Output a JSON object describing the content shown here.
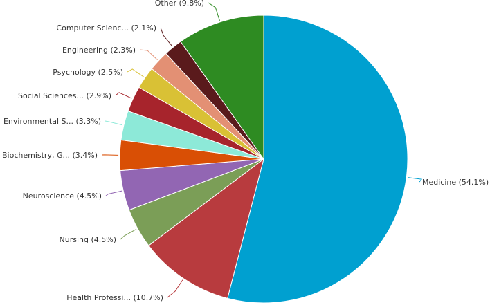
{
  "chart_data": {
    "type": "pie",
    "title": "",
    "slices": [
      {
        "label": "Medicine (54.1%)",
        "value": 54.1,
        "color": "#00A0D0"
      },
      {
        "label": "Health Professi... (10.7%)",
        "value": 10.7,
        "color": "#B83B3E"
      },
      {
        "label": "Nursing (4.5%)",
        "value": 4.5,
        "color": "#7B9E57"
      },
      {
        "label": "Neuroscience (4.5%)",
        "value": 4.5,
        "color": "#9266B3"
      },
      {
        "label": "Biochemistry, G... (3.4%)",
        "value": 3.4,
        "color": "#D94F05"
      },
      {
        "label": "Environmental S... (3.3%)",
        "value": 3.3,
        "color": "#8DE9D8"
      },
      {
        "label": "Social Sciences... (2.9%)",
        "value": 2.9,
        "color": "#A7242C"
      },
      {
        "label": "Psychology (2.5%)",
        "value": 2.5,
        "color": "#D9C135"
      },
      {
        "label": "Engineering (2.3%)",
        "value": 2.3,
        "color": "#E39074"
      },
      {
        "label": "Computer Scienc... (2.1%)",
        "value": 2.1,
        "color": "#5A1A1C"
      },
      {
        "label": "Other (9.8%)",
        "value": 9.8,
        "color": "#2E8B22"
      }
    ]
  }
}
